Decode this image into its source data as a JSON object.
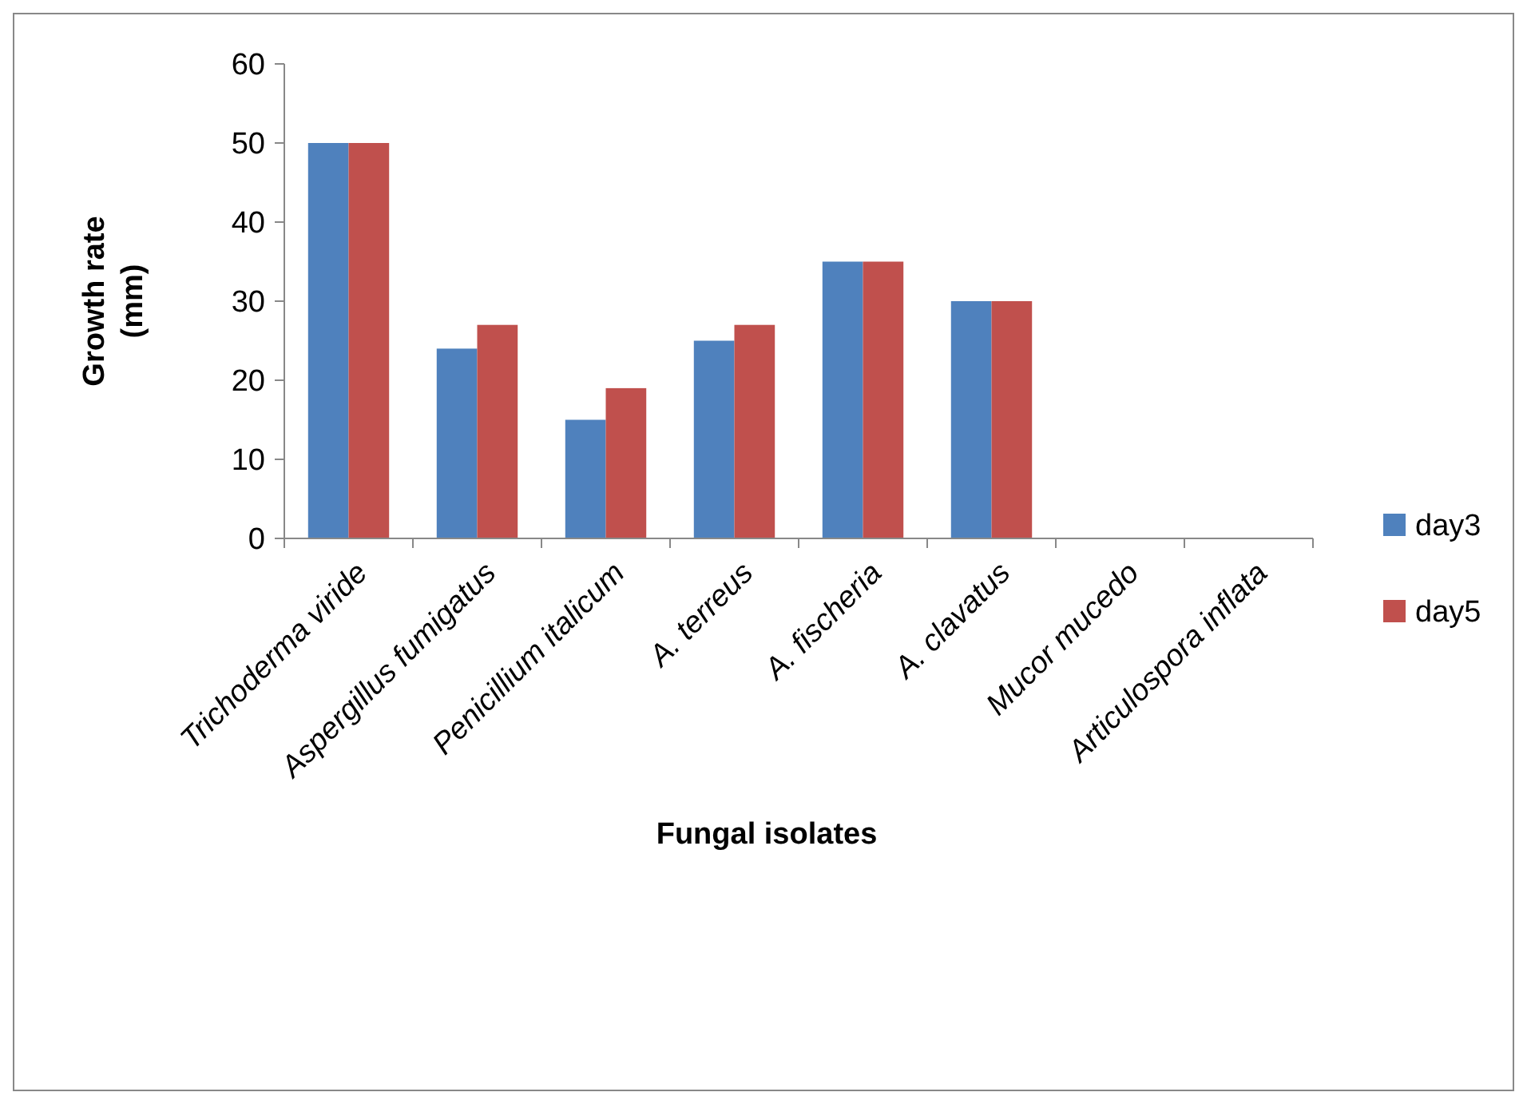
{
  "chart_data": {
    "type": "bar",
    "xlabel": "Fungal isolates",
    "ylabel": "Growth rate (mm)",
    "categories": [
      "Trichoderma viride",
      "Aspergillus fumigatus",
      "Penicillium italicum",
      "A. terreus",
      "A. fischeria",
      "A. clavatus",
      "Mucor mucedo",
      "Articulospora inflata"
    ],
    "series": [
      {
        "name": "day3",
        "color": "#4f81bd",
        "values": [
          50,
          24,
          15,
          25,
          35,
          30,
          0,
          0
        ]
      },
      {
        "name": "day5",
        "color": "#c0504d",
        "values": [
          50,
          27,
          19,
          27,
          35,
          30,
          0,
          0
        ]
      }
    ],
    "ylim": [
      0,
      60
    ],
    "yticks": [
      0,
      10,
      20,
      30,
      40,
      50,
      60
    ],
    "grid": false,
    "legend": "right"
  }
}
